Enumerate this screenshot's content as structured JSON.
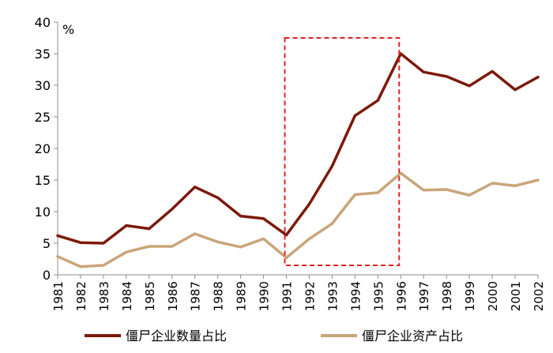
{
  "chart_data": {
    "type": "line",
    "unit_label": "%",
    "categories": [
      "1981",
      "1982",
      "1983",
      "1984",
      "1985",
      "1986",
      "1987",
      "1988",
      "1989",
      "1990",
      "1991",
      "1992",
      "1993",
      "1994",
      "1995",
      "1996",
      "1997",
      "1998",
      "1999",
      "2000",
      "2001",
      "2002"
    ],
    "ylim": [
      0,
      40
    ],
    "yticks": [
      0,
      5,
      10,
      15,
      20,
      25,
      30,
      35,
      40
    ],
    "grid": false,
    "legend_position": "bottom",
    "series": [
      {
        "name": "僵尸企业数量占比",
        "color": "#7b1a0c",
        "values": [
          6.2,
          5.1,
          5.0,
          7.8,
          7.3,
          10.4,
          13.9,
          12.2,
          9.3,
          8.9,
          6.3,
          11.2,
          17.2,
          25.2,
          27.6,
          35.0,
          32.1,
          31.4,
          29.9,
          32.2,
          29.3,
          31.3
        ]
      },
      {
        "name": "僵尸企业资产占比",
        "color": "#c9a57a",
        "values": [
          2.9,
          1.3,
          1.5,
          3.6,
          4.5,
          4.5,
          6.5,
          5.2,
          4.4,
          5.7,
          2.7,
          5.7,
          8.1,
          12.7,
          13.0,
          16.1,
          13.4,
          13.5,
          12.6,
          14.5,
          14.1,
          15.0
        ]
      }
    ],
    "annotations": [
      {
        "type": "dashed-box",
        "color": "#e02020",
        "x_from": "1991",
        "x_to": "1996",
        "y_from": 1.5,
        "y_to": 37.5
      }
    ]
  }
}
